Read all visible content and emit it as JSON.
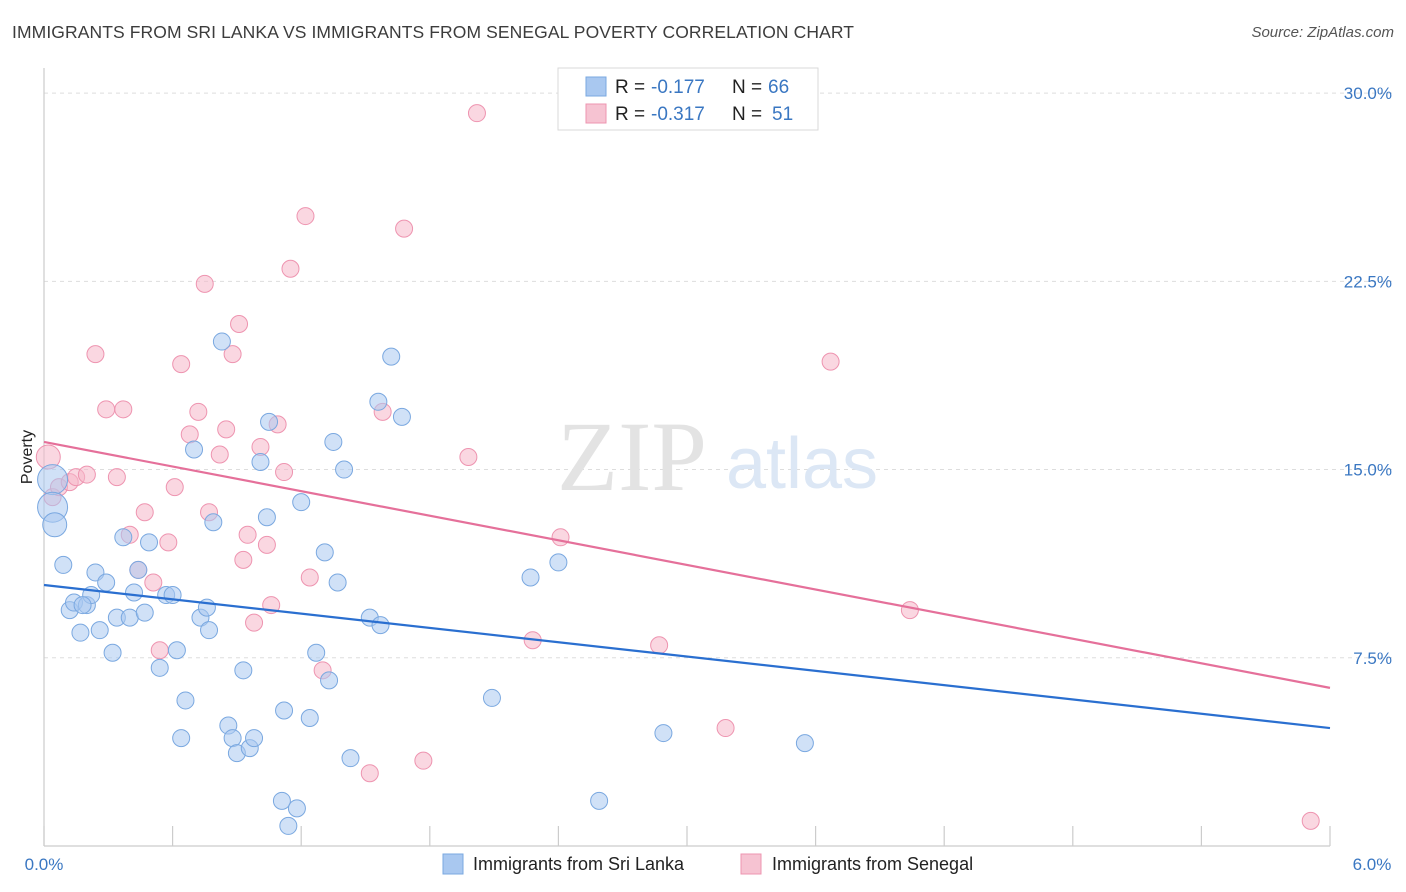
{
  "header": {
    "title": "IMMIGRANTS FROM SRI LANKA VS IMMIGRANTS FROM SENEGAL POVERTY CORRELATION CHART",
    "source": "Source: ZipAtlas.com"
  },
  "watermark": {
    "zip": "ZIP",
    "atlas": "atlas"
  },
  "colors": {
    "blue_fill": "#a9c8f0",
    "blue_stroke": "#7aa8e0",
    "blue_line": "#2a6fd0",
    "pink_fill": "#f6b7c9",
    "pink_stroke": "#ee94b0",
    "pink_line": "#e5709a",
    "tick_text": "#3a77c2",
    "grid": "#dddddd"
  },
  "legend": {
    "rows": [
      {
        "r_label": "R =",
        "r_value": "-0.177",
        "n_label": "N =",
        "n_value": "66"
      },
      {
        "r_label": "R =",
        "r_value": "-0.317",
        "n_label": "N =",
        "n_value": "51"
      }
    ],
    "bottom": [
      "Immigrants from Sri Lanka",
      "Immigrants from Senegal"
    ]
  },
  "chart_data": {
    "type": "scatter",
    "xlabel": "",
    "ylabel": "Poverty",
    "xlim": [
      0,
      6
    ],
    "ylim": [
      0,
      31
    ],
    "x_tick_labels": [
      "0.0%",
      "6.0%"
    ],
    "y_ticks": [
      7.5,
      15.0,
      22.5,
      30.0
    ],
    "y_tick_labels": [
      "7.5%",
      "15.0%",
      "22.5%",
      "30.0%"
    ],
    "grid": true,
    "legend_position": "top-center",
    "series": [
      {
        "name": "Immigrants from Sri Lanka",
        "r": -0.177,
        "n": 66,
        "trend": {
          "x": [
            0.0,
            6.0
          ],
          "y": [
            10.4,
            4.7
          ]
        },
        "points": [
          [
            0.04,
            14.6,
            3
          ],
          [
            0.04,
            13.5,
            3
          ],
          [
            0.05,
            12.8,
            2
          ],
          [
            0.09,
            11.2,
            1
          ],
          [
            0.12,
            9.4,
            1
          ],
          [
            0.14,
            9.7,
            1
          ],
          [
            0.17,
            8.5,
            1
          ],
          [
            0.2,
            9.6,
            1
          ],
          [
            0.22,
            10.0,
            1
          ],
          [
            0.24,
            10.9,
            1
          ],
          [
            0.26,
            8.6,
            1
          ],
          [
            0.29,
            10.5,
            1
          ],
          [
            0.32,
            7.7,
            1
          ],
          [
            0.34,
            9.1,
            1
          ],
          [
            0.37,
            12.3,
            1
          ],
          [
            0.4,
            9.1,
            1
          ],
          [
            0.42,
            10.1,
            1
          ],
          [
            0.44,
            11.0,
            1
          ],
          [
            0.47,
            9.3,
            1
          ],
          [
            0.49,
            12.1,
            1
          ],
          [
            0.54,
            7.1,
            1
          ],
          [
            0.57,
            10.0,
            1
          ],
          [
            0.6,
            10.0,
            1
          ],
          [
            0.62,
            7.8,
            1
          ],
          [
            0.64,
            4.3,
            1
          ],
          [
            0.66,
            5.8,
            1
          ],
          [
            0.7,
            15.8,
            1
          ],
          [
            0.73,
            9.1,
            1
          ],
          [
            0.76,
            9.5,
            1
          ],
          [
            0.77,
            8.6,
            1
          ],
          [
            0.79,
            12.9,
            1
          ],
          [
            0.83,
            20.1,
            1
          ],
          [
            0.86,
            4.8,
            1
          ],
          [
            0.88,
            4.3,
            1
          ],
          [
            0.9,
            3.7,
            1
          ],
          [
            0.93,
            7.0,
            1
          ],
          [
            0.96,
            3.9,
            1
          ],
          [
            0.98,
            4.3,
            1
          ],
          [
            1.01,
            15.3,
            1
          ],
          [
            1.04,
            13.1,
            1
          ],
          [
            1.05,
            16.9,
            1
          ],
          [
            1.11,
            1.8,
            1
          ],
          [
            1.12,
            5.4,
            1
          ],
          [
            1.14,
            0.8,
            1
          ],
          [
            1.18,
            1.5,
            1
          ],
          [
            1.2,
            13.7,
            1
          ],
          [
            1.24,
            5.1,
            1
          ],
          [
            1.27,
            7.7,
            1
          ],
          [
            1.31,
            11.7,
            1
          ],
          [
            1.33,
            6.6,
            1
          ],
          [
            1.35,
            16.1,
            1
          ],
          [
            1.37,
            10.5,
            1
          ],
          [
            1.4,
            15.0,
            1
          ],
          [
            1.43,
            3.5,
            1
          ],
          [
            1.52,
            9.1,
            1
          ],
          [
            1.56,
            17.7,
            1
          ],
          [
            1.57,
            8.8,
            1
          ],
          [
            1.62,
            19.5,
            1
          ],
          [
            1.67,
            17.1,
            1
          ],
          [
            2.09,
            5.9,
            1
          ],
          [
            2.27,
            10.7,
            1
          ],
          [
            2.4,
            11.3,
            1
          ],
          [
            2.59,
            1.8,
            1
          ],
          [
            2.89,
            4.5,
            1
          ],
          [
            3.55,
            4.1,
            1
          ],
          [
            0.18,
            9.6,
            1
          ]
        ]
      },
      {
        "name": "Immigrants from Senegal",
        "r": -0.317,
        "n": 51,
        "trend": {
          "x": [
            0.0,
            6.0
          ],
          "y": [
            16.1,
            6.3
          ]
        },
        "points": [
          [
            0.02,
            15.5,
            2
          ],
          [
            0.04,
            13.9,
            1
          ],
          [
            0.07,
            14.3,
            1
          ],
          [
            0.12,
            14.5,
            1
          ],
          [
            0.15,
            14.7,
            1
          ],
          [
            0.2,
            14.8,
            1
          ],
          [
            0.24,
            19.6,
            1
          ],
          [
            0.29,
            17.4,
            1
          ],
          [
            0.34,
            14.7,
            1
          ],
          [
            0.37,
            17.4,
            1
          ],
          [
            0.4,
            12.4,
            1
          ],
          [
            0.44,
            11.0,
            1
          ],
          [
            0.47,
            13.3,
            1
          ],
          [
            0.51,
            10.5,
            1
          ],
          [
            0.54,
            7.8,
            1
          ],
          [
            0.58,
            12.1,
            1
          ],
          [
            0.61,
            14.3,
            1
          ],
          [
            0.64,
            19.2,
            1
          ],
          [
            0.68,
            16.4,
            1
          ],
          [
            0.72,
            17.3,
            1
          ],
          [
            0.75,
            22.4,
            1
          ],
          [
            0.77,
            13.3,
            1
          ],
          [
            0.82,
            15.6,
            1
          ],
          [
            0.85,
            16.6,
            1
          ],
          [
            0.88,
            19.6,
            1
          ],
          [
            0.91,
            20.8,
            1
          ],
          [
            0.93,
            11.4,
            1
          ],
          [
            0.95,
            12.4,
            1
          ],
          [
            0.98,
            8.9,
            1
          ],
          [
            1.01,
            15.9,
            1
          ],
          [
            1.04,
            12.0,
            1
          ],
          [
            1.06,
            9.6,
            1
          ],
          [
            1.09,
            16.8,
            1
          ],
          [
            1.12,
            14.9,
            1
          ],
          [
            1.15,
            23.0,
            1
          ],
          [
            1.22,
            25.1,
            1
          ],
          [
            1.24,
            10.7,
            1
          ],
          [
            1.3,
            7.0,
            1
          ],
          [
            1.52,
            2.9,
            1
          ],
          [
            1.58,
            17.3,
            1
          ],
          [
            1.68,
            24.6,
            1
          ],
          [
            1.77,
            3.4,
            1
          ],
          [
            1.98,
            15.5,
            1
          ],
          [
            2.02,
            29.2,
            1
          ],
          [
            2.28,
            8.2,
            1
          ],
          [
            2.41,
            12.3,
            1
          ],
          [
            2.87,
            8.0,
            1
          ],
          [
            3.18,
            4.7,
            1
          ],
          [
            3.67,
            19.3,
            1
          ],
          [
            4.04,
            9.4,
            1
          ],
          [
            5.91,
            1.0,
            1
          ]
        ]
      }
    ]
  }
}
